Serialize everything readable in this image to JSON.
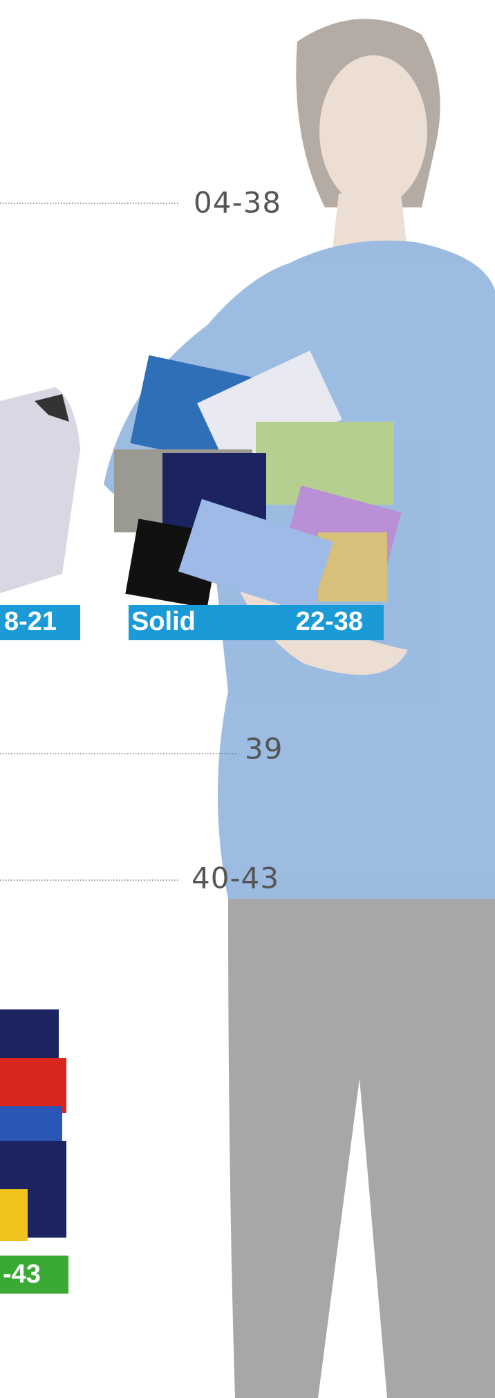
{
  "toc": {
    "entries": [
      {
        "pages": "04-38"
      },
      {
        "pages": "39"
      },
      {
        "pages": "40-43"
      }
    ],
    "labels": [
      {
        "pages": "8-21"
      },
      {
        "name": "Solid",
        "pages": "22-38"
      },
      {
        "pages": "-43"
      }
    ]
  }
}
